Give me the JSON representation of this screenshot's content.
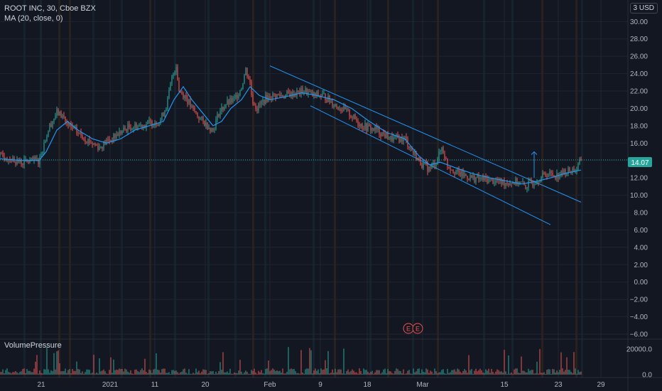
{
  "legend": {
    "symbol_line": "ROOT INC, 30, Cboe BZX",
    "ma_line": "MA (20, close, 0)"
  },
  "volume_panel": {
    "label": "VolumePressure"
  },
  "currency": "3 USD",
  "last_price_label": "14.07",
  "colors": {
    "background": "#131722",
    "grid": "#1f2430",
    "up": "#26a69a",
    "down": "#ef5350",
    "ma": "#2196f3",
    "channel": "#2196f3",
    "price_line": "#26a69a",
    "event_marker": "#ef5350"
  },
  "event_markers": [
    "E",
    "E"
  ],
  "chart_data": {
    "type": "line",
    "title": "ROOT INC, 30, Cboe BZX",
    "x_tick_labels": [
      "21",
      "2021",
      "11",
      "20",
      "Feb",
      "9",
      "18",
      "Mar",
      "15",
      "23",
      "29"
    ],
    "y_tick_labels": [
      "30.00",
      "28.00",
      "26.00",
      "24.00",
      "22.00",
      "20.00",
      "18.00",
      "16.00",
      "14.00",
      "12.00",
      "10.00",
      "8.00",
      "6.00",
      "4.00",
      "2.00",
      "0.00",
      "−2.00",
      "−4.00",
      "−6.00"
    ],
    "ylim": [
      -6,
      31.5
    ],
    "last_price": 14.07,
    "price_series": {
      "name": "ROOT INC",
      "x": [
        0,
        30,
        55,
        62,
        70,
        80,
        90,
        95,
        105,
        120,
        140,
        150,
        158,
        165,
        180,
        195,
        210,
        225,
        235,
        242,
        248,
        252,
        260,
        270,
        285,
        300,
        308,
        318,
        330,
        340,
        346,
        352,
        355,
        362,
        372,
        385,
        400,
        420,
        430,
        440,
        455,
        470,
        490,
        510,
        530,
        550,
        570,
        585,
        595,
        605,
        615,
        622,
        630,
        645,
        665,
        685,
        705,
        720,
        730,
        740,
        750,
        760,
        770,
        785,
        800,
        812,
        818
      ],
      "y": [
        14.5,
        13.8,
        14.0,
        16.0,
        18.0,
        19.5,
        19.0,
        18.0,
        17.5,
        16.5,
        15.5,
        16.2,
        16.5,
        17.0,
        17.8,
        18.0,
        18.3,
        18.5,
        20.5,
        23.5,
        25.0,
        22.0,
        21.5,
        20.0,
        18.5,
        17.5,
        19.5,
        20.5,
        21.0,
        22.5,
        24.5,
        23.0,
        21.0,
        20.0,
        21.0,
        21.5,
        21.5,
        21.8,
        22.0,
        21.5,
        21.5,
        20.5,
        19.5,
        18.0,
        17.5,
        16.5,
        16.5,
        14.5,
        13.5,
        13.0,
        14.0,
        15.5,
        13.5,
        12.5,
        12.0,
        11.8,
        11.5,
        11.5,
        11.5,
        11.0,
        11.5,
        12.0,
        12.5,
        12.3,
        12.8,
        13.0,
        14.1
      ]
    },
    "ma_series": {
      "name": "MA (20, close, 0)",
      "x": [
        0,
        30,
        55,
        65,
        80,
        95,
        110,
        130,
        150,
        170,
        190,
        210,
        230,
        245,
        258,
        270,
        285,
        300,
        312,
        325,
        340,
        352,
        365,
        380,
        400,
        425,
        445,
        470,
        495,
        520,
        545,
        570,
        590,
        605,
        620,
        640,
        665,
        690,
        715,
        735,
        755,
        775,
        795,
        818
      ],
      "y": [
        14.2,
        14.0,
        14.0,
        15.0,
        17.5,
        18.5,
        17.5,
        16.5,
        16.0,
        16.5,
        17.5,
        18.0,
        18.5,
        21.0,
        22.5,
        21.0,
        19.5,
        18.0,
        18.5,
        20.0,
        21.0,
        22.5,
        21.5,
        21.0,
        21.3,
        21.8,
        21.5,
        21.0,
        20.0,
        18.5,
        17.2,
        16.5,
        14.5,
        13.5,
        13.8,
        13.2,
        12.5,
        12.0,
        11.6,
        11.3,
        11.6,
        12.0,
        12.5,
        12.9
      ]
    },
    "volume": {
      "name": "VolumePressure",
      "ylim": [
        0,
        25000
      ],
      "tick_labels": [
        "20000.0",
        "0.0"
      ]
    },
    "channel_lines": [
      {
        "x": [
          380,
          818
        ],
        "y": [
          24.9,
          9.2
        ]
      },
      {
        "x": [
          437,
          775
        ],
        "y": [
          20.3,
          6.6
        ]
      }
    ],
    "breakout_arrow": {
      "x": 752,
      "y_from": 12.0,
      "y_to": 15.0
    }
  }
}
